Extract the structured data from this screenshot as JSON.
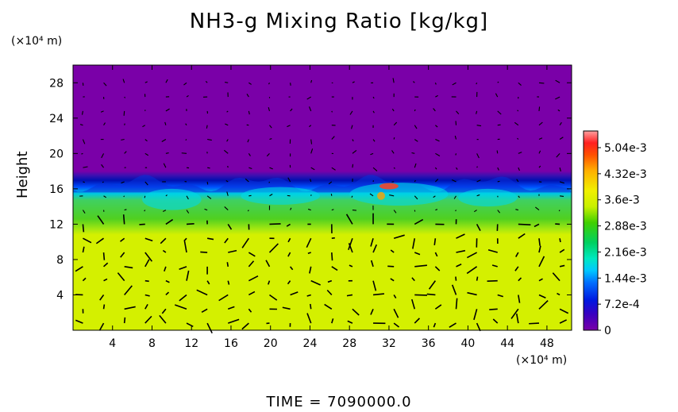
{
  "chart_data": {
    "type": "heatmap",
    "title": "NH3-g Mixing Ratio [kg/kg]",
    "xlabel": "",
    "ylabel": "Height",
    "x_unit": "(×10⁴ m)",
    "y_unit": "(×10⁴ m)",
    "x_ticks": [
      "4",
      "8",
      "12",
      "16",
      "20",
      "24",
      "28",
      "32",
      "36",
      "40",
      "44",
      "48"
    ],
    "y_ticks": [
      "4",
      "8",
      "12",
      "16",
      "20",
      "24",
      "28"
    ],
    "xlim": [
      0,
      50.5
    ],
    "ylim": [
      0,
      30
    ],
    "colorbar_ticks": [
      "0",
      "7.2e-4",
      "1.44e-3",
      "2.16e-3",
      "2.88e-3",
      "3.6e-3",
      "4.32e-3",
      "5.04e-3"
    ],
    "colorbar_range": [
      0,
      0.0055
    ],
    "layers": [
      {
        "height_range": [
          0,
          11
        ],
        "value": 0.0033
      },
      {
        "height_range": [
          11,
          15.5
        ],
        "value": 0.0027
      },
      {
        "height_range": [
          15.5,
          16.5
        ],
        "value": 0.0016
      },
      {
        "height_range": [
          16.5,
          17.5
        ],
        "value": 0.0005
      },
      {
        "height_range": [
          17.5,
          30
        ],
        "value": 0
      }
    ],
    "overlay": "wind vector arrows",
    "time_label": "TIME = 7090000.0"
  }
}
